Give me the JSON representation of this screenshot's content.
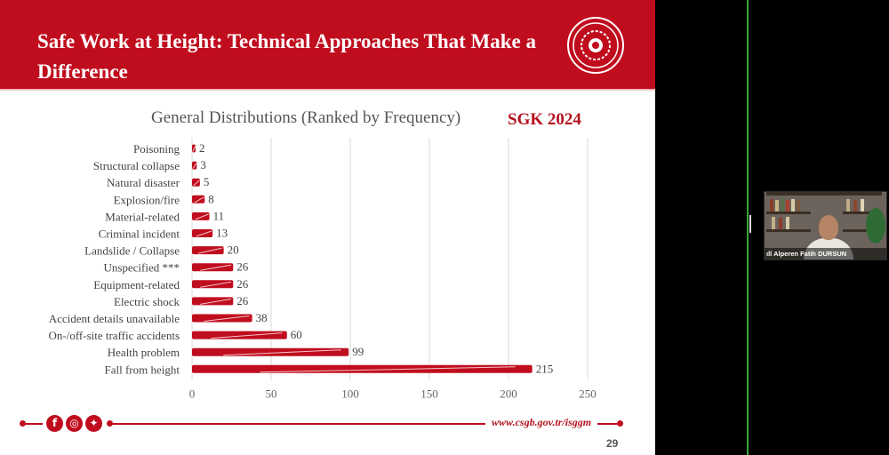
{
  "slide": {
    "title": "Safe Work at Height: Technical Approaches That Make a Difference",
    "chart_heading": "General Distributions (Ranked by Frequency)",
    "source_tag": "SGK 2024",
    "website": "www.csgb.gov.tr/isggm",
    "page_number": "29",
    "social_icons": [
      "facebook-icon",
      "instagram-icon",
      "twitter-icon"
    ],
    "colors": {
      "brand_red": "#c00d1e",
      "bar_red": "#c00d1e",
      "divider_green": "#3aa53a"
    }
  },
  "chart_data": {
    "type": "bar",
    "orientation": "horizontal",
    "title": "General Distributions (Ranked by Frequency)",
    "categories": [
      "Poisoning",
      "Structural collapse",
      "Natural disaster",
      "Explosion/fire",
      "Material-related",
      "Criminal incident",
      "Landslide / Collapse",
      "Unspecified ***",
      "Equipment-related",
      "Electric shock",
      "Accident details unavailable",
      "On-/off-site traffic accidents",
      "Health problem",
      "Fall from height"
    ],
    "values": [
      2,
      3,
      5,
      8,
      11,
      13,
      20,
      26,
      26,
      26,
      38,
      60,
      99,
      215
    ],
    "xlim": [
      0,
      250
    ],
    "xticks": [
      0,
      50,
      100,
      150,
      200,
      250
    ],
    "grid": true,
    "data_labels": true
  },
  "video_tile": {
    "participant_name": "Alperen Fatih DURSUN"
  }
}
